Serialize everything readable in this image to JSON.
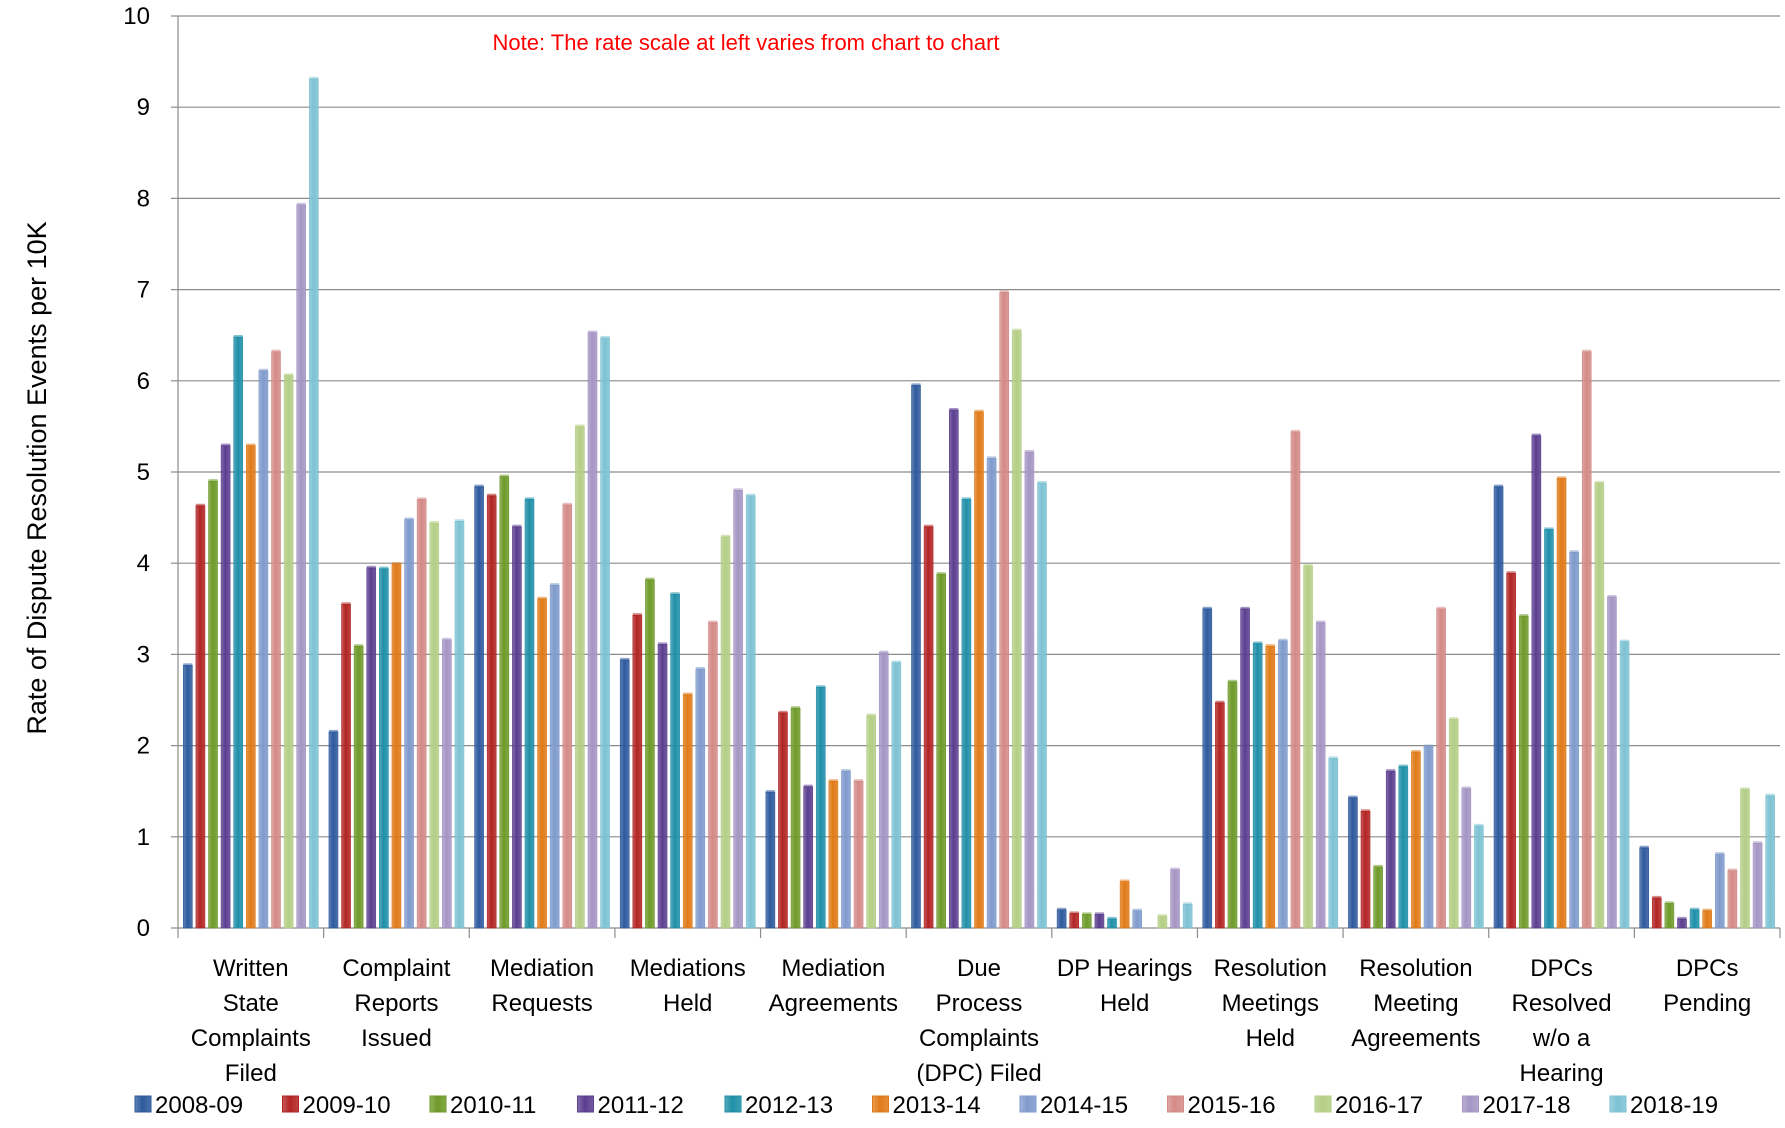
{
  "chart_data": {
    "type": "bar",
    "title": "",
    "ylabel": "Rate of Dispute Resolution Events per 10K",
    "xlabel": "",
    "ylim": [
      0,
      10
    ],
    "yticks": [
      0,
      1,
      2,
      3,
      4,
      5,
      6,
      7,
      8,
      9,
      10
    ],
    "grid": true,
    "legend_position": "bottom",
    "note": "Note:  The rate scale at left varies from chart to chart",
    "note_color": "#FF0000",
    "categories": [
      [
        "Written",
        "State",
        "Complaints",
        "Filed"
      ],
      [
        "Complaint",
        "Reports",
        "Issued"
      ],
      [
        "Mediation",
        "Requests"
      ],
      [
        "Mediations",
        "Held"
      ],
      [
        "Mediation",
        "Agreements"
      ],
      [
        "Due",
        "Process",
        "Complaints",
        "(DPC) Filed"
      ],
      [
        "DP Hearings",
        "Held"
      ],
      [
        "Resolution",
        "Meetings",
        "Held"
      ],
      [
        "Resolution",
        "Meeting",
        "Agreements"
      ],
      [
        "DPCs",
        "Resolved",
        "w/o a",
        "Hearing"
      ],
      [
        "DPCs",
        "Pending"
      ]
    ],
    "series": [
      {
        "name": "2008-09",
        "color": "#2E5A9E",
        "values": [
          2.88,
          2.15,
          4.84,
          2.94,
          1.49,
          5.95,
          0.2,
          3.5,
          1.43,
          4.84,
          0.88
        ]
      },
      {
        "name": "2009-10",
        "color": "#B22424",
        "values": [
          4.63,
          3.55,
          4.74,
          3.43,
          2.36,
          4.4,
          0.16,
          2.47,
          1.28,
          3.89,
          0.33
        ]
      },
      {
        "name": "2010-11",
        "color": "#6E9A2A",
        "values": [
          4.9,
          3.09,
          4.95,
          3.82,
          2.41,
          3.88,
          0.15,
          2.7,
          0.67,
          3.42,
          0.27
        ]
      },
      {
        "name": "2011-12",
        "color": "#5B3E8F",
        "values": [
          5.29,
          3.95,
          4.4,
          3.11,
          1.55,
          5.68,
          0.15,
          3.5,
          1.72,
          5.4,
          0.1
        ]
      },
      {
        "name": "2012-13",
        "color": "#1F8FA8",
        "values": [
          6.48,
          3.94,
          4.7,
          3.66,
          2.64,
          4.7,
          0.1,
          3.12,
          1.77,
          4.37,
          0.2
        ]
      },
      {
        "name": "2013-14",
        "color": "#E07A18",
        "values": [
          5.29,
          3.99,
          3.61,
          2.56,
          1.61,
          5.66,
          0.51,
          3.09,
          1.93,
          4.93,
          0.19
        ]
      },
      {
        "name": "2014-15",
        "color": "#7F9ACC",
        "values": [
          6.11,
          4.48,
          3.76,
          2.84,
          1.72,
          5.15,
          0.19,
          3.15,
          1.99,
          4.12,
          0.81
        ]
      },
      {
        "name": "2015-16",
        "color": "#D48A87",
        "values": [
          6.32,
          4.7,
          4.64,
          3.35,
          1.61,
          6.97,
          0.0,
          5.44,
          3.5,
          6.32,
          0.63
        ]
      },
      {
        "name": "2016-17",
        "color": "#B4CE86",
        "values": [
          6.06,
          4.44,
          5.5,
          4.29,
          2.33,
          6.55,
          0.13,
          3.97,
          2.29,
          4.88,
          1.52
        ]
      },
      {
        "name": "2017-18",
        "color": "#A595C4",
        "values": [
          7.93,
          3.16,
          6.53,
          4.8,
          3.02,
          5.22,
          0.64,
          3.35,
          1.53,
          3.63,
          0.93
        ]
      },
      {
        "name": "2018-19",
        "color": "#7DC2D3",
        "values": [
          9.31,
          4.46,
          6.47,
          4.74,
          2.91,
          4.88,
          0.26,
          1.86,
          1.12,
          3.14,
          1.45
        ]
      }
    ]
  }
}
